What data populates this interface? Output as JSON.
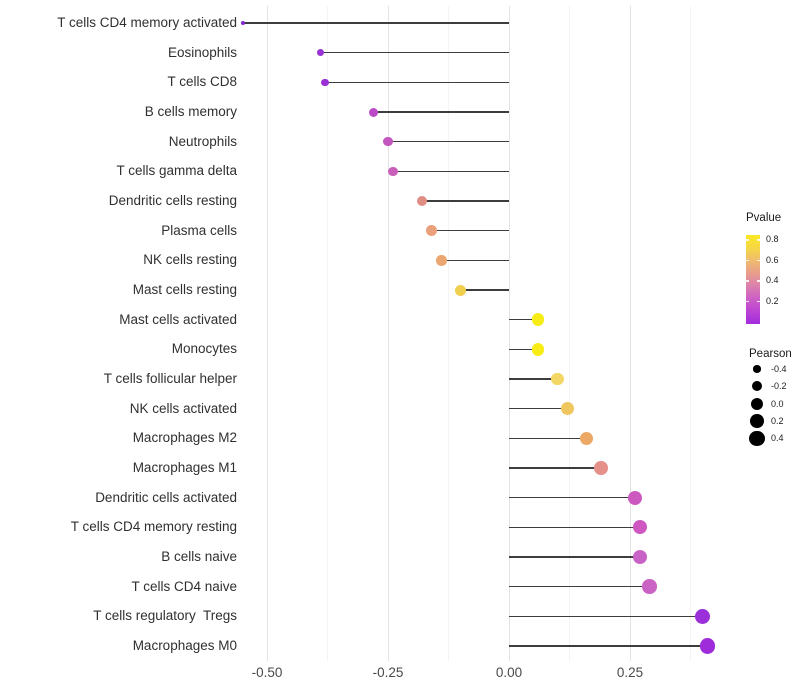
{
  "chart_data": {
    "type": "scatter",
    "subtype": "lollipop",
    "title": "",
    "xlabel": "",
    "ylabel": "",
    "x_tick_labels": [
      "-0.50",
      "-0.25",
      "0.00",
      "0.25"
    ],
    "x_tick_values": [
      -0.5,
      -0.25,
      0.0,
      0.25
    ],
    "x_minor_gridlines": [
      -0.375,
      -0.125,
      0.125,
      0.375
    ],
    "xlim": [
      -0.59,
      0.46
    ],
    "grid": true,
    "baseline_x": 0.0,
    "rows": [
      {
        "label": "T cells CD4 memory activated",
        "pearson": -0.55,
        "pvalue": 0.01,
        "color": "#8129D2"
      },
      {
        "label": "Eosinophils",
        "pearson": -0.39,
        "pvalue": 0.05,
        "color": "#9832D4"
      },
      {
        "label": "T cells CD8",
        "pearson": -0.38,
        "pvalue": 0.05,
        "color": "#9A2FD4"
      },
      {
        "label": "B cells memory",
        "pearson": -0.28,
        "pvalue": 0.15,
        "color": "#BC4AC8"
      },
      {
        "label": "Neutrophils",
        "pearson": -0.25,
        "pvalue": 0.18,
        "color": "#C356BF"
      },
      {
        "label": "T cells gamma delta",
        "pearson": -0.24,
        "pvalue": 0.2,
        "color": "#C95FB9"
      },
      {
        "label": "Dendritic cells resting",
        "pearson": -0.18,
        "pvalue": 0.42,
        "color": "#E08D84"
      },
      {
        "label": "Plasma cells",
        "pearson": -0.16,
        "pvalue": 0.5,
        "color": "#EBA07C"
      },
      {
        "label": "NK cells resting",
        "pearson": -0.14,
        "pvalue": 0.52,
        "color": "#EBA671"
      },
      {
        "label": "Mast cells resting",
        "pearson": -0.1,
        "pvalue": 0.68,
        "color": "#F0CE4E"
      },
      {
        "label": "Mast cells activated",
        "pearson": 0.06,
        "pvalue": 0.82,
        "color": "#F8EC16"
      },
      {
        "label": "Monocytes",
        "pearson": 0.06,
        "pvalue": 0.82,
        "color": "#F8EC16"
      },
      {
        "label": "T cells follicular helper",
        "pearson": 0.1,
        "pvalue": 0.7,
        "color": "#F2D765"
      },
      {
        "label": "NK cells activated",
        "pearson": 0.12,
        "pvalue": 0.65,
        "color": "#EFC75E"
      },
      {
        "label": "Macrophages M2",
        "pearson": 0.16,
        "pvalue": 0.55,
        "color": "#ECA865"
      },
      {
        "label": "Macrophages M1",
        "pearson": 0.19,
        "pvalue": 0.45,
        "color": "#E6908A"
      },
      {
        "label": "Dendritic cells activated",
        "pearson": 0.26,
        "pvalue": 0.22,
        "color": "#CD59C0"
      },
      {
        "label": "T cells CD4 memory resting",
        "pearson": 0.27,
        "pvalue": 0.22,
        "color": "#CE58C0"
      },
      {
        "label": "B cells naive",
        "pearson": 0.27,
        "pvalue": 0.2,
        "color": "#C962C6"
      },
      {
        "label": "T cells CD4 naive",
        "pearson": 0.29,
        "pvalue": 0.2,
        "color": "#CB63C4"
      },
      {
        "label": "T cells regulatory  Tregs",
        "pearson": 0.4,
        "pvalue": 0.06,
        "color": "#9B2FD9"
      },
      {
        "label": "Macrophages M0",
        "pearson": 0.41,
        "pvalue": 0.06,
        "color": "#9E2CDA"
      }
    ],
    "legends": {
      "pvalue": {
        "title": "Pvalue",
        "tick_labels": [
          "0.8",
          "0.6",
          "0.4",
          "0.2"
        ],
        "tick_values": [
          0.8,
          0.6,
          0.4,
          0.2
        ],
        "range": [
          0.0,
          0.82
        ],
        "gradient_top_color": "#FBE822",
        "gradient_bottom_color": "#A22CDC",
        "position": "right"
      },
      "pearson": {
        "title": "Pearson",
        "tick_labels": [
          "-0.4",
          "-0.2",
          "0.0",
          "0.2",
          "0.4"
        ],
        "tick_values": [
          -0.4,
          -0.2,
          0.0,
          0.2,
          0.4
        ],
        "dot_color": "#000000",
        "position": "right"
      }
    }
  }
}
